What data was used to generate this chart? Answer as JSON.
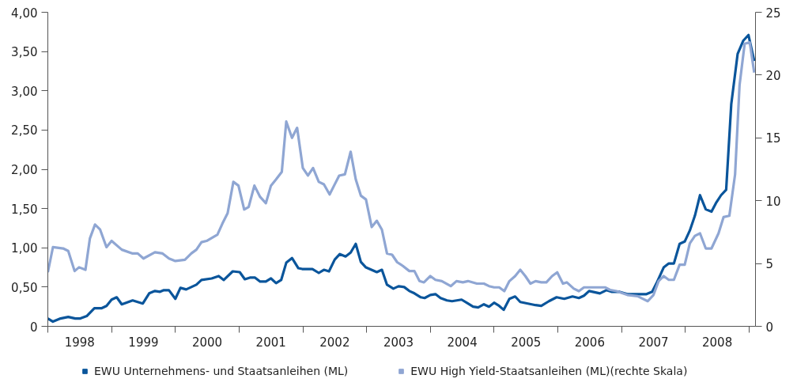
{
  "chart_data": {
    "type": "line",
    "xlim": [
      1998,
      2009.1
    ],
    "xticks": [
      {
        "value": 1998,
        "label": null
      },
      {
        "value": 1998.5,
        "label": "1998"
      },
      {
        "value": 1999,
        "label": null
      },
      {
        "value": 1999.5,
        "label": "1999"
      },
      {
        "value": 2000,
        "label": null
      },
      {
        "value": 2000.5,
        "label": "2000"
      },
      {
        "value": 2001,
        "label": null
      },
      {
        "value": 2001.5,
        "label": "2001"
      },
      {
        "value": 2002,
        "label": null
      },
      {
        "value": 2002.5,
        "label": "2002"
      },
      {
        "value": 2003,
        "label": null
      },
      {
        "value": 2003.5,
        "label": "2003"
      },
      {
        "value": 2004,
        "label": null
      },
      {
        "value": 2004.5,
        "label": "2004"
      },
      {
        "value": 2005,
        "label": null
      },
      {
        "value": 2005.5,
        "label": "2005"
      },
      {
        "value": 2006,
        "label": null
      },
      {
        "value": 2006.5,
        "label": "2006"
      },
      {
        "value": 2007,
        "label": null
      },
      {
        "value": 2007.5,
        "label": "2007"
      },
      {
        "value": 2008,
        "label": null
      },
      {
        "value": 2008.5,
        "label": "2008"
      },
      {
        "value": 2009,
        "label": null
      }
    ],
    "ylim": [
      0,
      4
    ],
    "yticks": [
      0,
      {
        "value": 0.5,
        "label": "0,50"
      },
      {
        "value": 1,
        "label": "1,00"
      },
      {
        "value": 1.5,
        "label": "1,50"
      },
      {
        "value": 2,
        "label": "2,00"
      },
      {
        "value": 2.5,
        "label": "2,50"
      },
      {
        "value": 3,
        "label": "3,00"
      },
      {
        "value": 3.5,
        "label": "3,50"
      },
      {
        "value": 4,
        "label": "4,00"
      }
    ],
    "y2lim": [
      0,
      25
    ],
    "y2ticks": [
      0,
      5,
      10,
      15,
      20,
      25
    ],
    "grid": false,
    "legend": "bottom",
    "marker": "none",
    "line_style": "solid",
    "series": [
      {
        "name": "EWU Unternehmens- und Staatsanleihen (ML)",
        "color": "#0a559b",
        "x": [
          1998.0,
          1998.08,
          1998.2,
          1998.32,
          1998.43,
          1998.51,
          1998.61,
          1998.73,
          1998.84,
          1998.92,
          1999.0,
          1999.08,
          1999.16,
          1999.33,
          1999.49,
          1999.59,
          1999.68,
          1999.76,
          1999.82,
          1999.9,
          2000.0,
          2000.08,
          2000.17,
          2000.33,
          2000.41,
          2000.57,
          2000.68,
          2000.76,
          2000.9,
          2001.01,
          2001.09,
          2001.17,
          2001.25,
          2001.33,
          2001.42,
          2001.5,
          2001.58,
          2001.66,
          2001.74,
          2001.83,
          2001.93,
          2001.99,
          2002.15,
          2002.25,
          2002.33,
          2002.41,
          2002.5,
          2002.58,
          2002.67,
          2002.75,
          2002.83,
          2002.91,
          2002.99,
          2003.16,
          2003.24,
          2003.32,
          2003.42,
          2003.5,
          2003.59,
          2003.67,
          2003.75,
          2003.85,
          2003.91,
          2004.0,
          2004.08,
          2004.16,
          2004.26,
          2004.34,
          2004.49,
          2004.59,
          2004.67,
          2004.75,
          2004.84,
          2004.92,
          2005.0,
          2005.08,
          2005.15,
          2005.24,
          2005.33,
          2005.41,
          2005.53,
          2005.65,
          2005.74,
          2005.86,
          2005.98,
          2006.1,
          2006.23,
          2006.33,
          2006.41,
          2006.49,
          2006.66,
          2006.76,
          2006.84,
          2006.96,
          2007.09,
          2007.25,
          2007.39,
          2007.48,
          2007.56,
          2007.66,
          2007.74,
          2007.82,
          2007.91,
          2007.99,
          2008.07,
          2008.15,
          2008.23,
          2008.32,
          2008.41,
          2008.48,
          2008.56,
          2008.64,
          2008.72,
          2008.82,
          2008.91,
          2008.99,
          2009.08
        ],
        "values": [
          0.1,
          0.06,
          0.1,
          0.12,
          0.1,
          0.1,
          0.13,
          0.23,
          0.23,
          0.26,
          0.34,
          0.37,
          0.28,
          0.33,
          0.29,
          0.42,
          0.45,
          0.44,
          0.46,
          0.46,
          0.35,
          0.49,
          0.47,
          0.53,
          0.59,
          0.61,
          0.64,
          0.59,
          0.7,
          0.69,
          0.6,
          0.62,
          0.62,
          0.57,
          0.57,
          0.61,
          0.55,
          0.59,
          0.81,
          0.87,
          0.74,
          0.73,
          0.73,
          0.68,
          0.72,
          0.7,
          0.85,
          0.92,
          0.89,
          0.94,
          1.05,
          0.82,
          0.75,
          0.69,
          0.72,
          0.53,
          0.48,
          0.51,
          0.5,
          0.45,
          0.42,
          0.37,
          0.36,
          0.4,
          0.41,
          0.36,
          0.33,
          0.32,
          0.34,
          0.29,
          0.25,
          0.24,
          0.28,
          0.25,
          0.3,
          0.26,
          0.21,
          0.35,
          0.38,
          0.31,
          0.29,
          0.27,
          0.26,
          0.32,
          0.37,
          0.35,
          0.38,
          0.36,
          0.39,
          0.45,
          0.42,
          0.46,
          0.44,
          0.44,
          0.41,
          0.41,
          0.41,
          0.44,
          0.57,
          0.75,
          0.8,
          0.8,
          1.05,
          1.08,
          1.22,
          1.41,
          1.67,
          1.49,
          1.46,
          1.57,
          1.67,
          1.74,
          2.83,
          3.47,
          3.64,
          3.71,
          3.38
        ]
      },
      {
        "name": "EWU High Yield-Staatsanleihen (ML)(rechte Skala)",
        "color": "#8fa6d3",
        "axis": "y2",
        "x": [
          1998.0,
          1998.08,
          1998.24,
          1998.32,
          1998.42,
          1998.49,
          1998.59,
          1998.66,
          1998.74,
          1998.82,
          1998.92,
          1999.0,
          1999.16,
          1999.33,
          1999.41,
          1999.5,
          1999.68,
          1999.8,
          1999.9,
          2000.0,
          2000.15,
          2000.25,
          2000.33,
          2000.41,
          2000.49,
          2000.66,
          2000.74,
          2000.82,
          2000.91,
          2000.99,
          2001.08,
          2001.15,
          2001.24,
          2001.33,
          2001.42,
          2001.5,
          2001.58,
          2001.67,
          2001.74,
          2001.83,
          2001.91,
          2002.0,
          2002.08,
          2002.16,
          2002.25,
          2002.33,
          2002.42,
          2002.49,
          2002.57,
          2002.66,
          2002.75,
          2002.83,
          2002.91,
          2002.99,
          2003.08,
          2003.16,
          2003.24,
          2003.32,
          2003.4,
          2003.48,
          2003.57,
          2003.67,
          2003.75,
          2003.83,
          2003.9,
          2004.0,
          2004.08,
          2004.18,
          2004.32,
          2004.41,
          2004.51,
          2004.59,
          2004.73,
          2004.84,
          2004.92,
          2005.0,
          2005.08,
          2005.16,
          2005.24,
          2005.33,
          2005.41,
          2005.49,
          2005.57,
          2005.65,
          2005.74,
          2005.82,
          2005.91,
          2005.99,
          2006.08,
          2006.14,
          2006.25,
          2006.33,
          2006.41,
          2006.58,
          2006.66,
          2006.74,
          2006.82,
          2006.92,
          2007.09,
          2007.25,
          2007.33,
          2007.41,
          2007.5,
          2007.58,
          2007.66,
          2007.74,
          2007.82,
          2007.91,
          2007.99,
          2008.07,
          2008.15,
          2008.23,
          2008.32,
          2008.41,
          2008.52,
          2008.6,
          2008.69,
          2008.78,
          2008.85,
          2008.93,
          2009.01,
          2009.08
        ],
        "values": [
          4.3,
          6.3,
          6.2,
          6.0,
          4.4,
          4.7,
          4.5,
          7.0,
          8.1,
          7.7,
          6.3,
          6.8,
          6.1,
          5.8,
          5.8,
          5.4,
          5.9,
          5.8,
          5.4,
          5.2,
          5.3,
          5.8,
          6.1,
          6.7,
          6.8,
          7.3,
          8.2,
          9.0,
          11.5,
          11.2,
          9.3,
          9.5,
          11.2,
          10.3,
          9.8,
          11.2,
          11.7,
          12.3,
          16.3,
          15.0,
          15.8,
          12.6,
          12.0,
          12.6,
          11.5,
          11.3,
          10.5,
          11.2,
          12.0,
          12.1,
          13.9,
          11.7,
          10.4,
          10.1,
          7.9,
          8.4,
          7.7,
          5.8,
          5.7,
          5.1,
          4.8,
          4.4,
          4.4,
          3.6,
          3.5,
          4.0,
          3.7,
          3.6,
          3.2,
          3.6,
          3.5,
          3.6,
          3.4,
          3.4,
          3.2,
          3.1,
          3.1,
          2.8,
          3.6,
          4.0,
          4.5,
          4.0,
          3.4,
          3.6,
          3.5,
          3.5,
          4.0,
          4.3,
          3.4,
          3.5,
          3.0,
          2.8,
          3.1,
          3.1,
          3.1,
          3.1,
          2.9,
          2.8,
          2.5,
          2.4,
          2.2,
          2.0,
          2.5,
          3.6,
          4.0,
          3.7,
          3.7,
          4.9,
          4.9,
          6.6,
          7.2,
          7.4,
          6.2,
          6.2,
          7.4,
          8.7,
          8.8,
          12.1,
          19.2,
          22.5,
          22.6,
          20.2
        ]
      }
    ]
  }
}
